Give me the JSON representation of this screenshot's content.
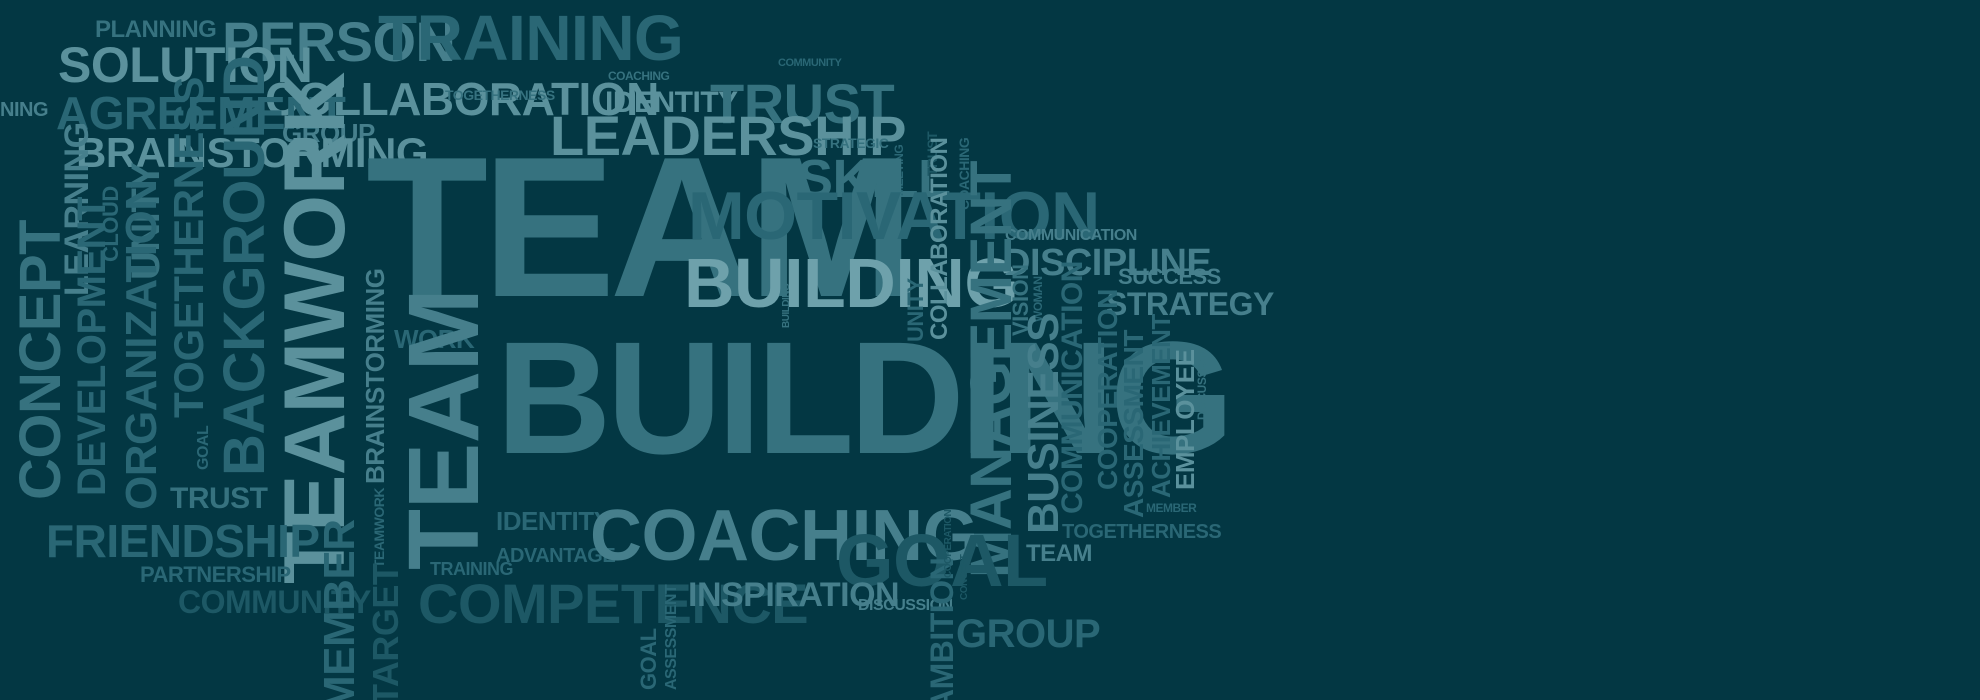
{
  "background_color": "#033743",
  "words": {
    "planning": "PLANNING",
    "person": "PERSON",
    "training_top": "TRAINING",
    "coaching_small": "COACHING",
    "community_small": "COMMUNITY",
    "solution": "SOLUTION",
    "collaboration_h": "COLLABORATION",
    "identity_top": "IDENTITY",
    "trust_top": "TRUST",
    "togetherness_small": "TOGETHERNESS",
    "agreement": "AGREEMENT",
    "group_small": "GROUP",
    "leadership": "LEADERSHIP",
    "strategic": "STRATEGIC",
    "skill": "SKILL",
    "meeting": "MEETING",
    "trust_small_v": "TRUST",
    "coaching_v": "COACHING",
    "brainstorming_h": "BRAINSTORMING",
    "ning": "NING",
    "team_big": "TEAM",
    "motivation": "MOTIVATION",
    "communication_top": "COMMUNICATION",
    "discipline": "DISCIPLINE",
    "success": "SUCCESS",
    "strategy": "STRATEGY",
    "building_mid": "BUILDING",
    "building_tiny": "BUILDING",
    "unity_small": "UNITY",
    "collaboration_v": "COLLABORATION",
    "management": "MANAGEMENT",
    "vision": "VISION",
    "woman": "WOMAN",
    "learning": "LEARNING",
    "concept": "CONCEPT",
    "development": "DEVELOPMENT",
    "cloud": "CLOUD",
    "unity": "UNITY",
    "organization": "ORGANIZATION",
    "togetherness_v": "TOGETHERNESS",
    "background": "BACKGROUND",
    "teamwork_big": "TEAMWORK",
    "brainstorming_v": "BRAINSTORMING",
    "work": "WORK",
    "team_v": "TEAM",
    "building_big": "BUILDING",
    "business": "BUSINESS",
    "communication_v": "COMMUNICATION",
    "cooperation": "COOPERATION",
    "assessment_v": "ASSESSMENT",
    "achievement": "ACHIEVEMENT",
    "employee": "EMPLOYEE",
    "discussion_v": "DISCUSSION",
    "goal_small_v": "GOAL",
    "trust_mid": "TRUST",
    "friendship": "FRIENDSHIP",
    "partnership": "PARTNERSHIP",
    "community": "COMMUNITY",
    "teamwork_small_v": "TEAMWORK",
    "identity": "IDENTITY",
    "advantage": "ADVANTAGE",
    "coaching_big": "COACHING",
    "goal_big": "GOAL",
    "management_small": "MANAGEMENT",
    "team_small": "TEAM",
    "togetherness_mid": "TOGETHERNESS",
    "member_small": "MEMBER",
    "training_small": "TRAINING",
    "competence": "COMPETENCE",
    "inspiration": "INSPIRATION",
    "discussion": "DISCUSSION",
    "group": "GROUP",
    "member_v": "MEMBER",
    "target_v": "TARGET",
    "goal_v": "GOAL",
    "assessment_small_v": "ASSESSMENT",
    "ambition_v": "AMBITION",
    "concept_small_v": "CONCEPT",
    "cooperation_small_v": "COOPERATION"
  }
}
